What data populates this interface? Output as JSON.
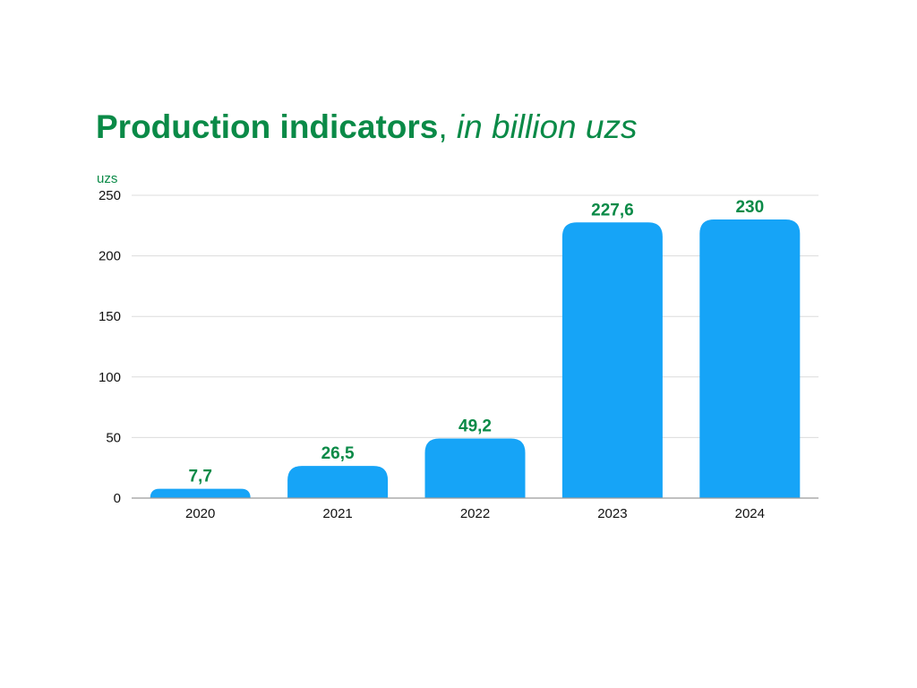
{
  "chart_data": {
    "type": "bar",
    "title": "Production indicators",
    "title_separator": ", ",
    "subtitle": "in billion uzs",
    "ylabel": "uzs",
    "xlabel": "",
    "categories": [
      "2020",
      "2021",
      "2022",
      "2023",
      "2024"
    ],
    "values": [
      7.7,
      26.5,
      49.2,
      227.6,
      230
    ],
    "data_labels": [
      "7,7",
      "26,5",
      "49,2",
      "227,6",
      "230"
    ],
    "ylim": [
      0,
      250
    ],
    "yticks": [
      0,
      50,
      100,
      150,
      200,
      250
    ],
    "grid": true,
    "legend": "none",
    "colors": {
      "bar": "#16a4f7",
      "title": "#0a8a47",
      "data_label": "#0a8a47",
      "axis_text": "#111111",
      "gridline": "#dcdcdc"
    }
  }
}
